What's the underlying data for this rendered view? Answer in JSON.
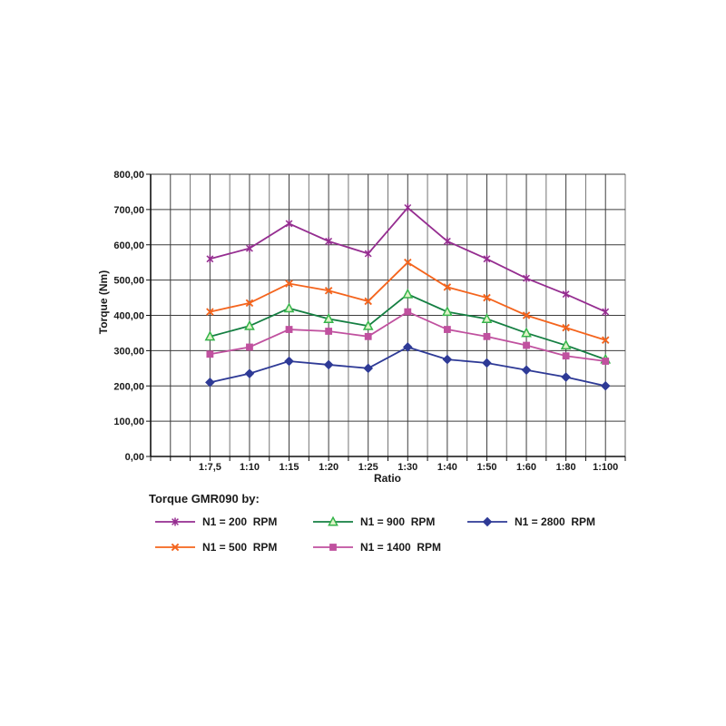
{
  "page": {
    "background": "#ffffff"
  },
  "chart_data": {
    "type": "line",
    "legend_title": "Torque GMR090 by:",
    "xlabel": "Ratio",
    "ylabel": "Torque (Nm)",
    "categories": [
      "1:7,5",
      "1:10",
      "1:15",
      "1:20",
      "1:25",
      "1:30",
      "1:40",
      "1:50",
      "1:60",
      "1:80",
      "1:100"
    ],
    "ylim": [
      0,
      800
    ],
    "y_tick_step": 100,
    "y_tick_labels": [
      "0,00",
      "100,00",
      "200,00",
      "300,00",
      "400,00",
      "500,00",
      "600,00",
      "700,00",
      "800,00"
    ],
    "grid": {
      "major_color": "#3d3d3d",
      "minor_color": "#757575",
      "axis_color": "#111111",
      "minor_vertical_per_category": true
    },
    "legend_position": "bottom",
    "series": [
      {
        "name": "N1 = 200  RPM",
        "marker": "star",
        "color": "#952d90",
        "marker_stroke": "#952d90",
        "marker_fill": "none",
        "values": [
          560,
          590,
          660,
          610,
          575,
          705,
          610,
          560,
          505,
          460,
          410
        ]
      },
      {
        "name": "N1 = 500  RPM",
        "marker": "x",
        "color": "#f4641d",
        "marker_stroke": "#f4641d",
        "marker_fill": "none",
        "values": [
          410,
          435,
          490,
          470,
          440,
          550,
          480,
          450,
          400,
          365,
          330
        ]
      },
      {
        "name": "N1 = 900  RPM",
        "marker": "triangle",
        "color": "#157f42",
        "marker_stroke": "#35b44a",
        "marker_fill": "#dff2c8",
        "values": [
          340,
          370,
          420,
          390,
          370,
          460,
          410,
          390,
          350,
          315,
          275
        ]
      },
      {
        "name": "N1 = 1400  RPM",
        "marker": "square",
        "color": "#c0519f",
        "marker_stroke": "#c0519f",
        "marker_fill": "#c0519f",
        "values": [
          290,
          310,
          360,
          355,
          340,
          410,
          360,
          340,
          315,
          285,
          270
        ]
      },
      {
        "name": "N1 = 2800  RPM",
        "marker": "diamond",
        "color": "#2e3a96",
        "marker_stroke": "#2e3a96",
        "marker_fill": "#2e3a96",
        "values": [
          210,
          235,
          270,
          260,
          250,
          310,
          275,
          265,
          245,
          225,
          200
        ]
      }
    ]
  }
}
